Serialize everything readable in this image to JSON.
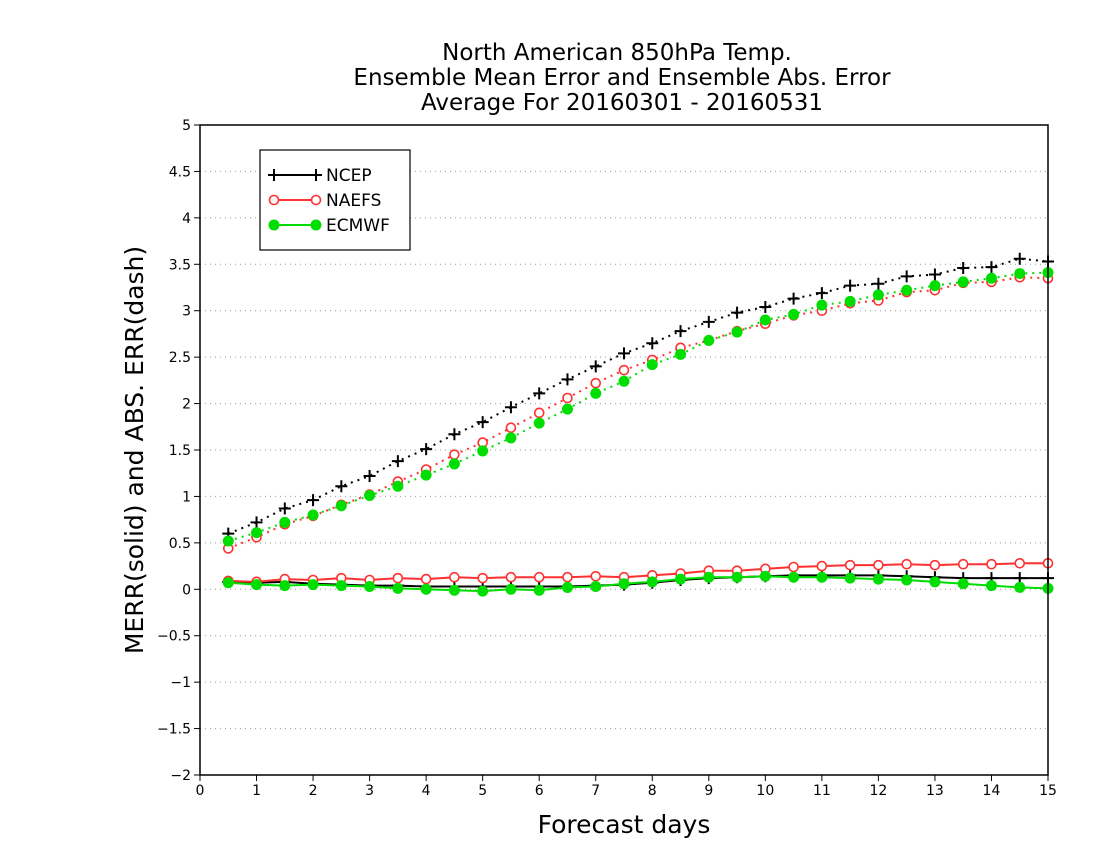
{
  "chart_data": {
    "type": "line",
    "title_lines": [
      "North American 850hPa Temp.",
      "Ensemble Mean Error and Ensemble Abs. Error",
      "Average For 20160301 - 20160531"
    ],
    "xlabel": "Forecast days",
    "ylabel": "MERR(solid) and ABS. ERR(dash)",
    "xlim": [
      0,
      15
    ],
    "ylim": [
      -2,
      5
    ],
    "xticks": [
      "0",
      "1",
      "2",
      "3",
      "4",
      "5",
      "6",
      "7",
      "8",
      "9",
      "10",
      "11",
      "12",
      "13",
      "14",
      "15"
    ],
    "yticks": [
      "−2",
      "−1.5",
      "−1",
      "−0.5",
      "0",
      "0.5",
      "1",
      "1.5",
      "2",
      "2.5",
      "3",
      "3.5",
      "4",
      "4.5",
      "5"
    ],
    "grid": "horizontal dotted",
    "legend_position": "top-left",
    "x": [
      0.5,
      1,
      1.5,
      2,
      2.5,
      3,
      3.5,
      4,
      4.5,
      5,
      5.5,
      6,
      6.5,
      7,
      7.5,
      8,
      8.5,
      9,
      9.5,
      10,
      10.5,
      11,
      11.5,
      12,
      12.5,
      13,
      13.5,
      14,
      14.5,
      15
    ],
    "series": [
      {
        "name": "NCEP",
        "color": "#000000",
        "marker": "plus",
        "merr": [
          0.08,
          0.07,
          0.08,
          0.06,
          0.05,
          0.04,
          0.04,
          0.03,
          0.03,
          0.03,
          0.03,
          0.03,
          0.03,
          0.04,
          0.05,
          0.07,
          0.1,
          0.12,
          0.13,
          0.14,
          0.15,
          0.15,
          0.15,
          0.15,
          0.14,
          0.13,
          0.12,
          0.12,
          0.12,
          0.12
        ],
        "abs_err": [
          0.6,
          0.72,
          0.87,
          0.96,
          1.11,
          1.22,
          1.38,
          1.51,
          1.67,
          1.8,
          1.96,
          2.11,
          2.26,
          2.4,
          2.54,
          2.65,
          2.78,
          2.88,
          2.98,
          3.04,
          3.13,
          3.19,
          3.27,
          3.29,
          3.37,
          3.39,
          3.46,
          3.47,
          3.56,
          3.53
        ]
      },
      {
        "name": "NAEFS",
        "color": "#ff3030",
        "marker": "open-circle",
        "merr": [
          0.09,
          0.08,
          0.11,
          0.1,
          0.12,
          0.1,
          0.12,
          0.11,
          0.13,
          0.12,
          0.13,
          0.13,
          0.13,
          0.14,
          0.13,
          0.15,
          0.17,
          0.2,
          0.2,
          0.22,
          0.24,
          0.25,
          0.26,
          0.26,
          0.27,
          0.26,
          0.27,
          0.27,
          0.28,
          0.28
        ],
        "abs_err": [
          0.44,
          0.56,
          0.7,
          0.79,
          0.91,
          1.02,
          1.16,
          1.29,
          1.45,
          1.58,
          1.74,
          1.9,
          2.06,
          2.22,
          2.36,
          2.47,
          2.6,
          2.68,
          2.78,
          2.86,
          2.95,
          3.0,
          3.08,
          3.11,
          3.2,
          3.22,
          3.3,
          3.31,
          3.36,
          3.35
        ]
      },
      {
        "name": "ECMWF",
        "color": "#00dd00",
        "marker": "filled-circle",
        "merr": [
          0.07,
          0.05,
          0.04,
          0.05,
          0.04,
          0.03,
          0.01,
          0.0,
          -0.01,
          -0.02,
          0.0,
          -0.01,
          0.02,
          0.03,
          0.06,
          0.08,
          0.11,
          0.13,
          0.13,
          0.14,
          0.13,
          0.13,
          0.12,
          0.11,
          0.1,
          0.08,
          0.06,
          0.04,
          0.02,
          0.01
        ],
        "abs_err": [
          0.52,
          0.61,
          0.72,
          0.8,
          0.9,
          1.01,
          1.11,
          1.23,
          1.35,
          1.49,
          1.63,
          1.79,
          1.94,
          2.11,
          2.24,
          2.42,
          2.53,
          2.68,
          2.77,
          2.9,
          2.96,
          3.06,
          3.1,
          3.17,
          3.22,
          3.27,
          3.31,
          3.35,
          3.4,
          3.41
        ]
      }
    ]
  }
}
